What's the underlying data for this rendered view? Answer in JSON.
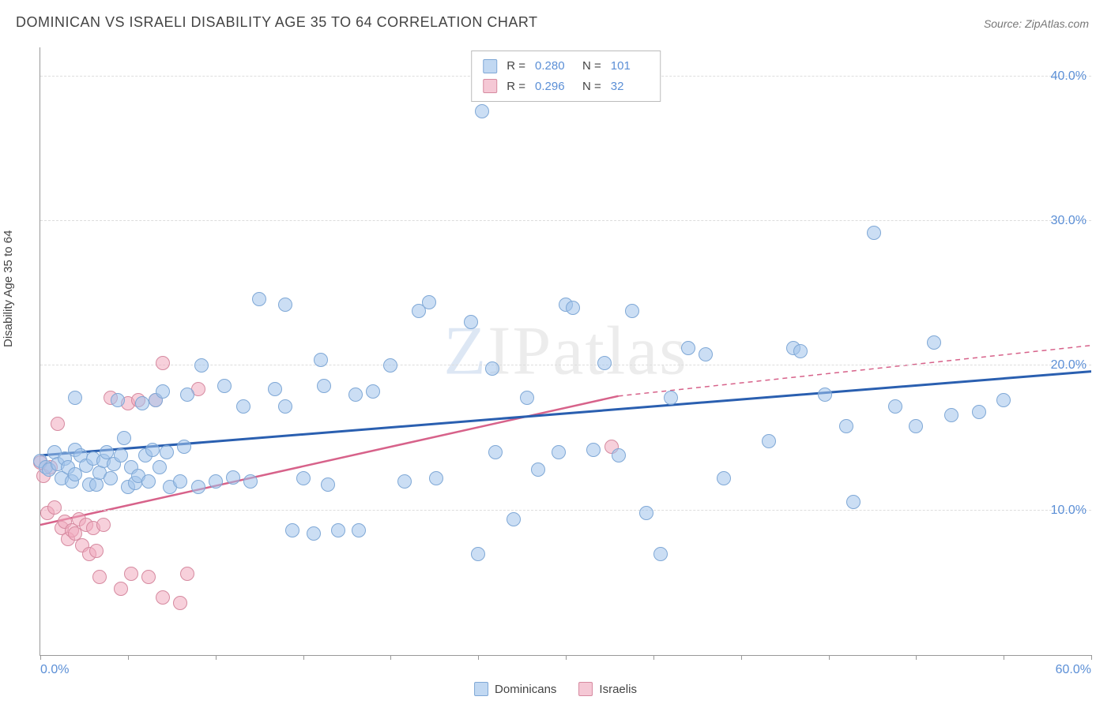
{
  "title": "DOMINICAN VS ISRAELI DISABILITY AGE 35 TO 64 CORRELATION CHART",
  "source_label": "Source: ",
  "source_value": "ZipAtlas.com",
  "ylabel": "Disability Age 35 to 64",
  "watermark_z": "Z",
  "watermark_ip": "IP",
  "watermark_atlas": "atlas",
  "chart": {
    "type": "scatter",
    "xlim": [
      0,
      60
    ],
    "ylim": [
      0,
      42
    ],
    "x_ticks": [
      0,
      5,
      10,
      15,
      20,
      25,
      30,
      35,
      40,
      45,
      50,
      55,
      60
    ],
    "x_tick_labels": {
      "0": "0.0%",
      "60": "60.0%"
    },
    "y_gridlines": [
      10,
      20,
      30,
      40
    ],
    "y_tick_labels": {
      "10": "10.0%",
      "20": "20.0%",
      "30": "30.0%",
      "40": "40.0%"
    },
    "background_color": "#ffffff",
    "grid_color": "#dddddd",
    "axis_color": "#999999",
    "tick_label_color": "#5b8fd6",
    "marker_size": 18,
    "series": {
      "a": {
        "label": "Dominicans",
        "fill": "rgba(160,195,235,0.55)",
        "stroke": "#7fa8d6",
        "R": "0.280",
        "N": "101",
        "trend": {
          "x1": 0,
          "y1": 13.8,
          "x2": 60,
          "y2": 19.6,
          "color": "#2a5fb0",
          "width": 3,
          "dash": "none"
        },
        "points": [
          [
            0,
            13.4
          ],
          [
            0.3,
            13.0
          ],
          [
            0.5,
            12.8
          ],
          [
            0.8,
            14.0
          ],
          [
            1.0,
            13.2
          ],
          [
            1.2,
            12.2
          ],
          [
            1.4,
            13.6
          ],
          [
            1.6,
            13.0
          ],
          [
            1.8,
            12.0
          ],
          [
            2.0,
            14.2
          ],
          [
            2.0,
            12.5
          ],
          [
            2.3,
            13.8
          ],
          [
            2.6,
            13.1
          ],
          [
            2.8,
            11.8
          ],
          [
            2.0,
            17.8
          ],
          [
            3.0,
            13.6
          ],
          [
            3.2,
            11.8
          ],
          [
            3.4,
            12.6
          ],
          [
            3.6,
            13.4
          ],
          [
            3.8,
            14.0
          ],
          [
            4.0,
            12.2
          ],
          [
            4.2,
            13.2
          ],
          [
            4.4,
            17.6
          ],
          [
            4.6,
            13.8
          ],
          [
            4.8,
            15.0
          ],
          [
            5.0,
            11.6
          ],
          [
            5.2,
            13.0
          ],
          [
            5.4,
            11.9
          ],
          [
            5.6,
            12.4
          ],
          [
            5.8,
            17.4
          ],
          [
            6.0,
            13.8
          ],
          [
            6.2,
            12.0
          ],
          [
            6.4,
            14.2
          ],
          [
            6.6,
            17.6
          ],
          [
            6.8,
            13.0
          ],
          [
            7.0,
            18.2
          ],
          [
            7.2,
            14.0
          ],
          [
            7.4,
            11.6
          ],
          [
            8.0,
            12.0
          ],
          [
            8.2,
            14.4
          ],
          [
            8.4,
            18.0
          ],
          [
            9.0,
            11.6
          ],
          [
            9.2,
            20.0
          ],
          [
            10.0,
            12.0
          ],
          [
            10.5,
            18.6
          ],
          [
            11.0,
            12.3
          ],
          [
            11.6,
            17.2
          ],
          [
            12.0,
            12.0
          ],
          [
            12.5,
            24.6
          ],
          [
            13.4,
            18.4
          ],
          [
            14.0,
            17.2
          ],
          [
            14.0,
            24.2
          ],
          [
            14.4,
            8.6
          ],
          [
            15.0,
            12.2
          ],
          [
            15.6,
            8.4
          ],
          [
            16.0,
            20.4
          ],
          [
            16.2,
            18.6
          ],
          [
            16.4,
            11.8
          ],
          [
            17.0,
            8.6
          ],
          [
            18.0,
            18.0
          ],
          [
            18.2,
            8.6
          ],
          [
            19.0,
            18.2
          ],
          [
            20.0,
            20.0
          ],
          [
            20.8,
            12.0
          ],
          [
            21.6,
            23.8
          ],
          [
            22.2,
            24.4
          ],
          [
            22.6,
            12.2
          ],
          [
            24.6,
            23.0
          ],
          [
            25.0,
            7.0
          ],
          [
            25.2,
            37.6
          ],
          [
            25.8,
            19.8
          ],
          [
            26.0,
            14.0
          ],
          [
            27.0,
            9.4
          ],
          [
            27.8,
            17.8
          ],
          [
            28.4,
            12.8
          ],
          [
            29.6,
            14.0
          ],
          [
            30.0,
            24.2
          ],
          [
            30.4,
            24.0
          ],
          [
            31.6,
            14.2
          ],
          [
            32.2,
            20.2
          ],
          [
            33.0,
            13.8
          ],
          [
            33.8,
            23.8
          ],
          [
            34.6,
            9.8
          ],
          [
            35.4,
            7.0
          ],
          [
            36.0,
            17.8
          ],
          [
            37.0,
            21.2
          ],
          [
            38.0,
            20.8
          ],
          [
            39.0,
            12.2
          ],
          [
            41.6,
            14.8
          ],
          [
            43.0,
            21.2
          ],
          [
            43.4,
            21.0
          ],
          [
            44.8,
            18.0
          ],
          [
            46.0,
            15.8
          ],
          [
            46.4,
            10.6
          ],
          [
            47.6,
            29.2
          ],
          [
            48.8,
            17.2
          ],
          [
            50.0,
            15.8
          ],
          [
            51.0,
            21.6
          ],
          [
            52.0,
            16.6
          ],
          [
            53.6,
            16.8
          ],
          [
            55.0,
            17.6
          ]
        ]
      },
      "b": {
        "label": "Israelis",
        "fill": "rgba(240,170,190,0.55)",
        "stroke": "#d68aa0",
        "R": "0.296",
        "N": "32",
        "trend_solid": {
          "x1": 0,
          "y1": 9.0,
          "x2": 33,
          "y2": 17.9,
          "color": "#d7628a",
          "width": 2.5
        },
        "trend_dash": {
          "x1": 33,
          "y1": 17.9,
          "x2": 60,
          "y2": 21.4,
          "color": "#d7628a",
          "width": 1.5,
          "dash": "6 5"
        },
        "points": [
          [
            0,
            13.3
          ],
          [
            0.2,
            12.4
          ],
          [
            0.4,
            9.8
          ],
          [
            0.6,
            13.0
          ],
          [
            0.8,
            10.2
          ],
          [
            1.0,
            16.0
          ],
          [
            1.2,
            8.8
          ],
          [
            1.4,
            9.2
          ],
          [
            1.6,
            8.0
          ],
          [
            1.8,
            8.6
          ],
          [
            2.0,
            8.4
          ],
          [
            2.2,
            9.4
          ],
          [
            2.4,
            7.6
          ],
          [
            2.6,
            9.0
          ],
          [
            2.8,
            7.0
          ],
          [
            3.0,
            8.8
          ],
          [
            3.2,
            7.2
          ],
          [
            3.4,
            5.4
          ],
          [
            3.6,
            9.0
          ],
          [
            4.6,
            4.6
          ],
          [
            4.0,
            17.8
          ],
          [
            5.0,
            17.4
          ],
          [
            5.2,
            5.6
          ],
          [
            5.6,
            17.6
          ],
          [
            6.2,
            5.4
          ],
          [
            6.6,
            17.6
          ],
          [
            7.0,
            4.0
          ],
          [
            7.0,
            20.2
          ],
          [
            8.0,
            3.6
          ],
          [
            8.4,
            5.6
          ],
          [
            9.0,
            18.4
          ],
          [
            32.6,
            14.4
          ]
        ]
      }
    }
  },
  "legend_top": {
    "R_label": "R =",
    "N_label": "N ="
  },
  "legend_bottom": {
    "a": "Dominicans",
    "b": "Israelis"
  }
}
